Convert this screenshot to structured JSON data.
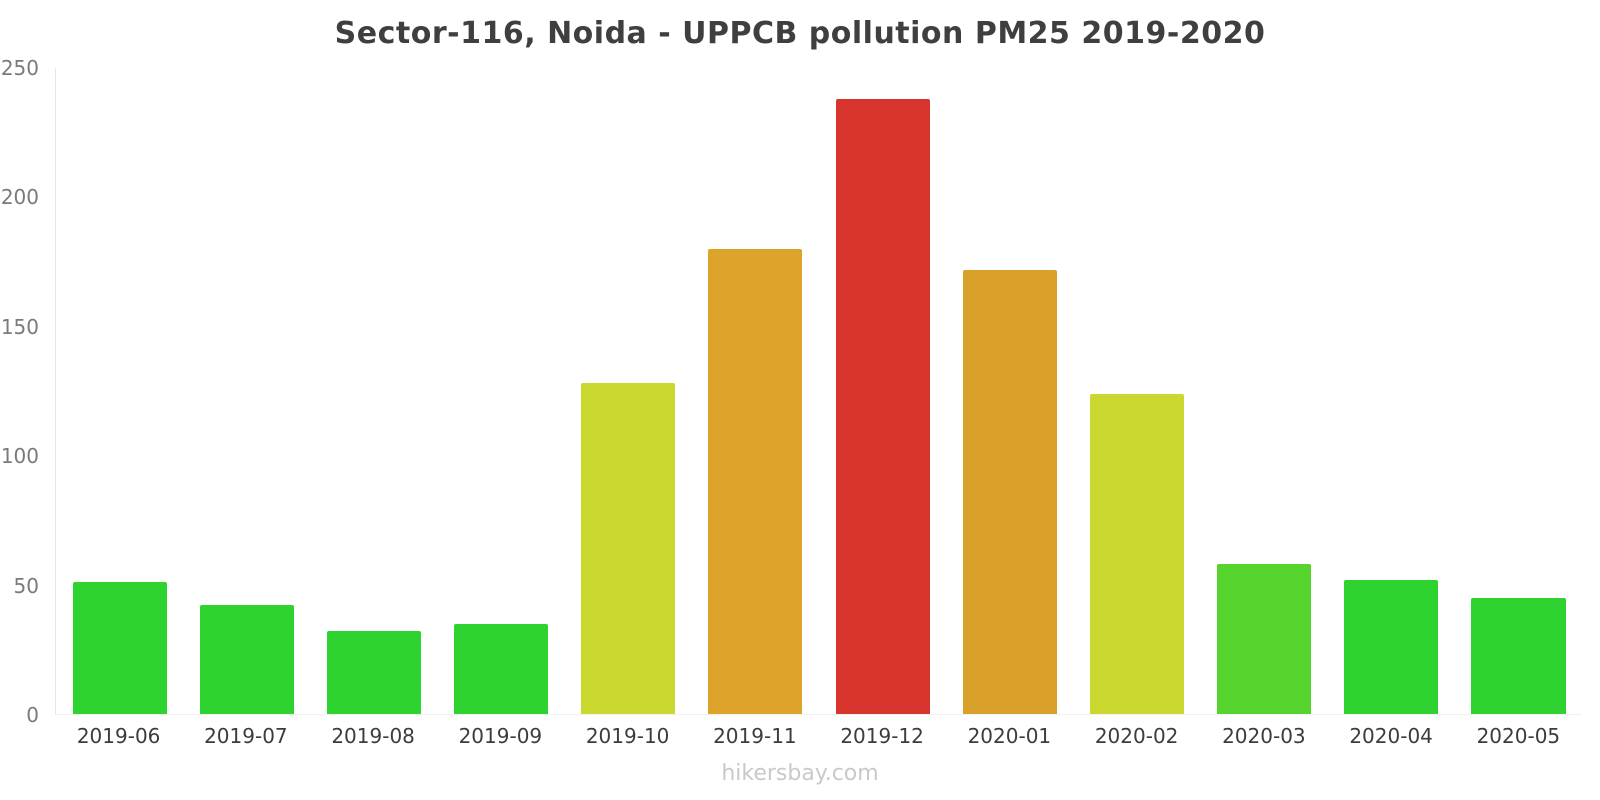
{
  "chart_data": {
    "type": "bar",
    "title": "Sector-116, Noida - UPPCB pollution PM25 2019-2020",
    "categories": [
      "2019-06",
      "2019-07",
      "2019-08",
      "2019-09",
      "2019-10",
      "2019-11",
      "2019-12",
      "2020-01",
      "2020-02",
      "2020-03",
      "2020-04",
      "2020-05"
    ],
    "values": [
      51,
      42,
      32,
      35,
      128,
      180,
      238,
      172,
      124,
      58,
      52,
      45
    ],
    "colors": [
      "#2fd32f",
      "#2fd32f",
      "#2fd32f",
      "#2fd32f",
      "#cbd82f",
      "#dda32a",
      "#d8342e",
      "#d9a02a",
      "#cbd82f",
      "#55d42e",
      "#2fd32f",
      "#2fd32f"
    ],
    "xlabel": "",
    "ylabel": "",
    "ylim": [
      0,
      250
    ],
    "yticks": [
      0,
      50,
      100,
      150,
      200,
      250
    ],
    "grid": false,
    "legend": false
  },
  "footer": {
    "watermark": "hikersbay.com"
  }
}
